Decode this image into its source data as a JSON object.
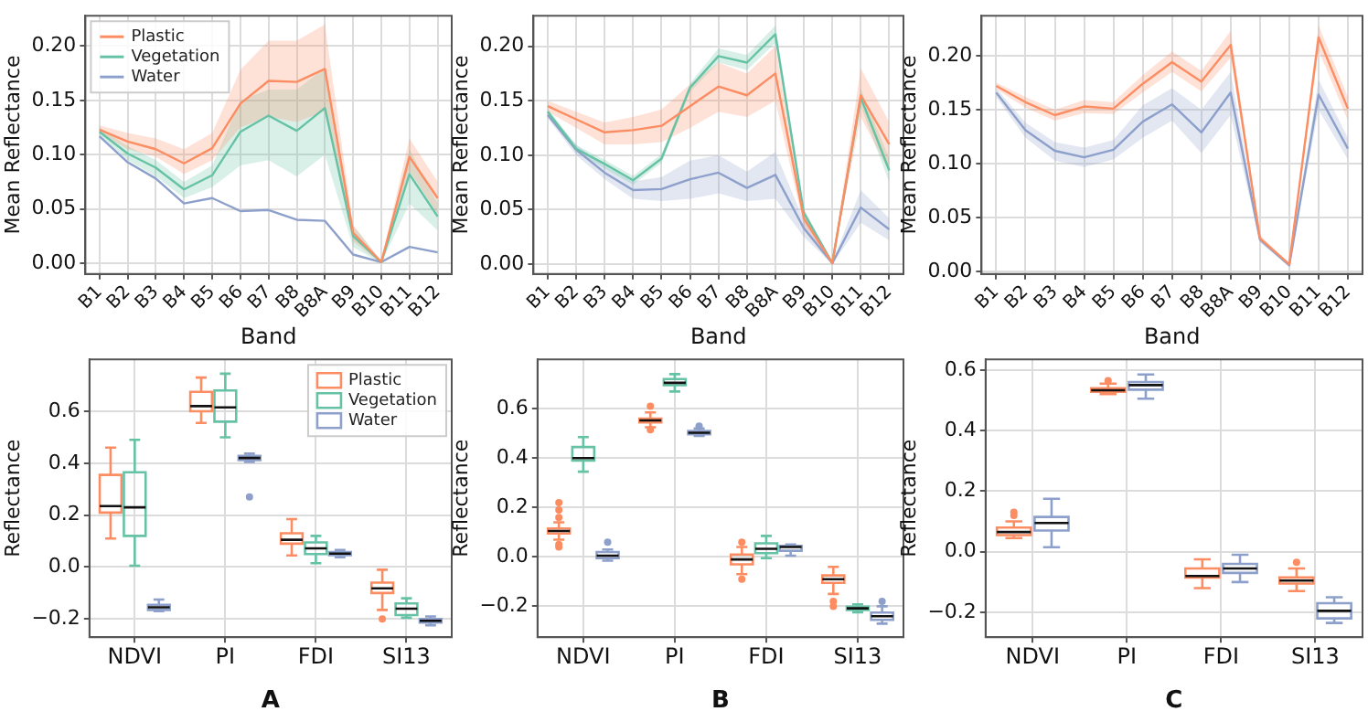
{
  "chart_data": [
    {
      "type": "line",
      "xlabel": "Band",
      "ylabel": "Mean Reflectance",
      "categories": [
        "B1",
        "B2",
        "B3",
        "B4",
        "B5",
        "B6",
        "B7",
        "B8",
        "B8A",
        "B9",
        "B10",
        "B11",
        "B12"
      ],
      "ylim": [
        -0.01,
        0.228
      ],
      "yticks": [
        {
          "value": 0,
          "label": "0.00"
        },
        {
          "value": 0.05,
          "label": "0.05"
        },
        {
          "value": 0.1,
          "label": "0.10"
        },
        {
          "value": 0.15,
          "label": "0.15"
        },
        {
          "value": 0.2,
          "label": "0.20"
        }
      ],
      "grid": true,
      "legend": "top left",
      "series": [
        {
          "name": "Plastic",
          "color": "#fc8d62",
          "values": [
            0.123,
            0.112,
            0.105,
            0.092,
            0.106,
            0.147,
            0.168,
            0.167,
            0.179,
            0.028,
            0.001,
            0.098,
            0.06
          ],
          "lower": [
            0.12,
            0.105,
            0.098,
            0.082,
            0.095,
            0.125,
            0.135,
            0.13,
            0.14,
            0.02,
            0,
            0.085,
            0.045
          ],
          "upper": [
            0.127,
            0.12,
            0.115,
            0.105,
            0.12,
            0.178,
            0.205,
            0.205,
            0.22,
            0.035,
            0.002,
            0.115,
            0.075
          ]
        },
        {
          "name": "Vegetation",
          "color": "#66c2a5",
          "values": [
            0.121,
            0.101,
            0.088,
            0.068,
            0.081,
            0.121,
            0.136,
            0.122,
            0.143,
            0.025,
            0.001,
            0.082,
            0.043
          ],
          "lower": [
            0.118,
            0.095,
            0.08,
            0.06,
            0.07,
            0.09,
            0.095,
            0.08,
            0.1,
            0.015,
            0,
            0.055,
            0.03
          ],
          "upper": [
            0.125,
            0.108,
            0.095,
            0.075,
            0.09,
            0.15,
            0.16,
            0.16,
            0.18,
            0.035,
            0.002,
            0.105,
            0.055
          ]
        },
        {
          "name": "Water",
          "color": "#8da0cb",
          "values": [
            0.117,
            0.093,
            0.078,
            0.055,
            0.06,
            0.048,
            0.049,
            0.04,
            0.039,
            0.008,
            0.001,
            0.015,
            0.01
          ]
        }
      ]
    },
    {
      "type": "line",
      "xlabel": "Band",
      "ylabel": "Mean Reflectance",
      "categories": [
        "B1",
        "B2",
        "B3",
        "B4",
        "B5",
        "B6",
        "B7",
        "B8",
        "B8A",
        "B9",
        "B10",
        "B11",
        "B12"
      ],
      "ylim": [
        -0.009,
        0.228
      ],
      "yticks": [
        {
          "value": 0,
          "label": "0.00"
        },
        {
          "value": 0.05,
          "label": "0.05"
        },
        {
          "value": 0.1,
          "label": "0.10"
        },
        {
          "value": 0.15,
          "label": "0.15"
        },
        {
          "value": 0.2,
          "label": "0.20"
        }
      ],
      "grid": true,
      "series": [
        {
          "color": "#fc8d62",
          "values": [
            0.145,
            0.133,
            0.121,
            0.123,
            0.127,
            0.145,
            0.163,
            0.155,
            0.175,
            0.042,
            0.001,
            0.155,
            0.11
          ],
          "lower": [
            0.14,
            0.125,
            0.11,
            0.11,
            0.112,
            0.125,
            0.14,
            0.135,
            0.15,
            0.035,
            0,
            0.135,
            0.085
          ],
          "upper": [
            0.15,
            0.14,
            0.13,
            0.135,
            0.142,
            0.165,
            0.185,
            0.175,
            0.2,
            0.05,
            0.002,
            0.18,
            0.13
          ]
        },
        {
          "color": "#66c2a5",
          "values": [
            0.14,
            0.106,
            0.092,
            0.077,
            0.097,
            0.162,
            0.191,
            0.185,
            0.211,
            0.047,
            0.001,
            0.153,
            0.086
          ],
          "lower": [
            0.137,
            0.103,
            0.088,
            0.073,
            0.093,
            0.158,
            0.185,
            0.178,
            0.203,
            0.043,
            0,
            0.145,
            0.075
          ],
          "upper": [
            0.143,
            0.109,
            0.096,
            0.081,
            0.101,
            0.166,
            0.198,
            0.192,
            0.219,
            0.051,
            0.002,
            0.161,
            0.097
          ]
        },
        {
          "color": "#8da0cb",
          "values": [
            0.137,
            0.105,
            0.084,
            0.068,
            0.069,
            0.078,
            0.084,
            0.07,
            0.082,
            0.033,
            0.001,
            0.052,
            0.032
          ],
          "lower": [
            0.134,
            0.1,
            0.078,
            0.06,
            0.058,
            0.06,
            0.065,
            0.058,
            0.06,
            0.025,
            0,
            0.038,
            0.022
          ],
          "upper": [
            0.14,
            0.11,
            0.09,
            0.076,
            0.08,
            0.095,
            0.1,
            0.085,
            0.103,
            0.04,
            0.002,
            0.068,
            0.042
          ]
        }
      ]
    },
    {
      "type": "line",
      "xlabel": "Band",
      "ylabel": "Mean Reflectance",
      "categories": [
        "B1",
        "B2",
        "B3",
        "B4",
        "B5",
        "B6",
        "B7",
        "B8",
        "B8A",
        "B9",
        "B10",
        "B11",
        "B12"
      ],
      "ylim": [
        -0.002,
        0.237
      ],
      "yticks": [
        {
          "value": 0,
          "label": "0.00"
        },
        {
          "value": 0.05,
          "label": "0.05"
        },
        {
          "value": 0.1,
          "label": "0.10"
        },
        {
          "value": 0.15,
          "label": "0.15"
        },
        {
          "value": 0.2,
          "label": "0.20"
        }
      ],
      "grid": true,
      "series": [
        {
          "color": "#fc8d62",
          "values": [
            0.172,
            0.157,
            0.145,
            0.153,
            0.151,
            0.174,
            0.194,
            0.176,
            0.21,
            0.031,
            0.007,
            0.217,
            0.151
          ],
          "lower": [
            0.169,
            0.152,
            0.14,
            0.147,
            0.146,
            0.166,
            0.185,
            0.167,
            0.198,
            0.029,
            0.006,
            0.205,
            0.14
          ],
          "upper": [
            0.175,
            0.162,
            0.15,
            0.159,
            0.157,
            0.182,
            0.204,
            0.186,
            0.223,
            0.034,
            0.008,
            0.228,
            0.162
          ]
        },
        {
          "color": "#8da0cb",
          "values": [
            0.166,
            0.131,
            0.112,
            0.106,
            0.113,
            0.139,
            0.155,
            0.129,
            0.166,
            0.03,
            0.006,
            0.164,
            0.114
          ],
          "lower": [
            0.162,
            0.124,
            0.103,
            0.097,
            0.104,
            0.124,
            0.14,
            0.11,
            0.145,
            0.027,
            0.005,
            0.15,
            0.104
          ],
          "upper": [
            0.17,
            0.138,
            0.12,
            0.115,
            0.122,
            0.154,
            0.17,
            0.15,
            0.185,
            0.033,
            0.007,
            0.178,
            0.124
          ]
        }
      ]
    },
    {
      "type": "box",
      "ylabel": "Reflectance",
      "categories": [
        "NDVI",
        "PI",
        "FDI",
        "SI13"
      ],
      "ylim": [
        -0.27,
        0.8
      ],
      "yticks": [
        {
          "value": -0.2,
          "label": "−0.2"
        },
        {
          "value": 0,
          "label": "0.0"
        },
        {
          "value": 0.2,
          "label": "0.2"
        },
        {
          "value": 0.4,
          "label": "0.4"
        },
        {
          "value": 0.6,
          "label": "0.6"
        }
      ],
      "grid": true,
      "legend": "top right",
      "annotations": [
        "A"
      ],
      "series": [
        {
          "name": "Plastic",
          "color": "#fc8d62",
          "boxes": [
            {
              "low": 0.11,
              "q1": 0.21,
              "median": 0.235,
              "q3": 0.355,
              "high": 0.46
            },
            {
              "low": 0.555,
              "q1": 0.6,
              "median": 0.62,
              "q3": 0.675,
              "high": 0.73
            },
            {
              "low": 0.045,
              "q1": 0.09,
              "median": 0.105,
              "q3": 0.13,
              "high": 0.185
            },
            {
              "low": -0.165,
              "q1": -0.1,
              "median": -0.082,
              "q3": -0.06,
              "high": -0.01,
              "outliers": [
                -0.2
              ]
            }
          ]
        },
        {
          "name": "Vegetation",
          "color": "#66c2a5",
          "boxes": [
            {
              "low": 0.005,
              "q1": 0.12,
              "median": 0.23,
              "q3": 0.365,
              "high": 0.49
            },
            {
              "low": 0.5,
              "q1": 0.56,
              "median": 0.615,
              "q3": 0.68,
              "high": 0.745
            },
            {
              "low": 0.015,
              "q1": 0.05,
              "median": 0.072,
              "q3": 0.095,
              "high": 0.12
            },
            {
              "low": -0.195,
              "q1": -0.185,
              "median": -0.16,
              "q3": -0.14,
              "high": -0.12
            }
          ]
        },
        {
          "name": "Water",
          "color": "#8da0cb",
          "boxes": [
            {
              "low": -0.17,
              "q1": -0.165,
              "median": -0.155,
              "q3": -0.145,
              "high": -0.125
            },
            {
              "low": 0.405,
              "q1": 0.412,
              "median": 0.42,
              "q3": 0.428,
              "high": 0.437,
              "outliers": [
                0.27
              ]
            },
            {
              "low": 0.038,
              "q1": 0.046,
              "median": 0.052,
              "q3": 0.058,
              "high": 0.066
            },
            {
              "low": -0.224,
              "q1": -0.214,
              "median": -0.207,
              "q3": -0.2,
              "high": -0.19
            }
          ]
        }
      ]
    },
    {
      "type": "box",
      "ylabel": "Reflectance",
      "categories": [
        "NDVI",
        "PI",
        "FDI",
        "SI13"
      ],
      "ylim": [
        -0.325,
        0.8
      ],
      "yticks": [
        {
          "value": -0.2,
          "label": "−0.2"
        },
        {
          "value": 0,
          "label": "0.0"
        },
        {
          "value": 0.2,
          "label": "0.2"
        },
        {
          "value": 0.4,
          "label": "0.4"
        },
        {
          "value": 0.6,
          "label": "0.6"
        }
      ],
      "grid": true,
      "annotations": [
        "B"
      ],
      "series": [
        {
          "color": "#fc8d62",
          "boxes": [
            {
              "low": 0.07,
              "q1": 0.095,
              "median": 0.105,
              "q3": 0.115,
              "high": 0.14,
              "outliers": [
                0.16,
                0.19,
                0.22,
                0.05,
                0.04
              ]
            },
            {
              "low": 0.525,
              "q1": 0.545,
              "median": 0.553,
              "q3": 0.56,
              "high": 0.585,
              "outliers": [
                0.61,
                0.515
              ]
            },
            {
              "low": -0.07,
              "q1": -0.03,
              "median": -0.01,
              "q3": 0.01,
              "high": 0.04,
              "outliers": [
                -0.09,
                0.06
              ]
            },
            {
              "low": -0.15,
              "q1": -0.105,
              "median": -0.09,
              "q3": -0.075,
              "high": -0.04,
              "outliers": [
                -0.2,
                -0.18
              ]
            }
          ]
        },
        {
          "color": "#66c2a5",
          "boxes": [
            {
              "low": 0.345,
              "q1": 0.39,
              "median": 0.4,
              "q3": 0.445,
              "high": 0.485
            },
            {
              "low": 0.67,
              "q1": 0.695,
              "median": 0.705,
              "q3": 0.72,
              "high": 0.74
            },
            {
              "low": -0.005,
              "q1": 0.015,
              "median": 0.033,
              "q3": 0.055,
              "high": 0.085
            },
            {
              "low": -0.224,
              "q1": -0.215,
              "median": -0.208,
              "q3": -0.201,
              "high": -0.192
            }
          ]
        },
        {
          "color": "#8da0cb",
          "boxes": [
            {
              "low": -0.015,
              "q1": -0.005,
              "median": 0.005,
              "q3": 0.02,
              "high": 0.03,
              "outliers": [
                0.06
              ]
            },
            {
              "low": 0.49,
              "q1": 0.497,
              "median": 0.503,
              "q3": 0.51,
              "high": 0.52,
              "outliers": [
                0.53
              ]
            },
            {
              "low": 0.005,
              "q1": 0.025,
              "median": 0.04,
              "q3": 0.045,
              "high": 0.05
            },
            {
              "low": -0.27,
              "q1": -0.255,
              "median": -0.24,
              "q3": -0.225,
              "high": -0.2,
              "outliers": [
                -0.18
              ]
            }
          ]
        }
      ]
    },
    {
      "type": "box",
      "ylabel": "Reflectance",
      "categories": [
        "NDVI",
        "PI",
        "FDI",
        "SI13"
      ],
      "ylim": [
        -0.282,
        0.635
      ],
      "yticks": [
        {
          "value": -0.2,
          "label": "−0.2"
        },
        {
          "value": 0,
          "label": "0.0"
        },
        {
          "value": 0.2,
          "label": "0.2"
        },
        {
          "value": 0.4,
          "label": "0.4"
        },
        {
          "value": 0.6,
          "label": "0.6"
        }
      ],
      "grid": true,
      "annotations": [
        "C"
      ],
      "series": [
        {
          "color": "#fc8d62",
          "boxes": [
            {
              "low": 0.045,
              "q1": 0.055,
              "median": 0.065,
              "q3": 0.08,
              "high": 0.1,
              "outliers": [
                0.12,
                0.13
              ]
            },
            {
              "low": 0.52,
              "q1": 0.528,
              "median": 0.533,
              "q3": 0.54,
              "high": 0.555,
              "outliers": [
                0.565
              ]
            },
            {
              "low": -0.12,
              "q1": -0.085,
              "median": -0.08,
              "q3": -0.055,
              "high": -0.025
            },
            {
              "low": -0.13,
              "q1": -0.105,
              "median": -0.095,
              "q3": -0.085,
              "high": -0.055,
              "outliers": [
                -0.035
              ]
            }
          ]
        },
        {
          "color": "#8da0cb",
          "boxes": [
            {
              "low": 0.015,
              "q1": 0.07,
              "median": 0.095,
              "q3": 0.115,
              "high": 0.175
            },
            {
              "low": 0.505,
              "q1": 0.535,
              "median": 0.55,
              "q3": 0.56,
              "high": 0.585
            },
            {
              "low": -0.1,
              "q1": -0.07,
              "median": -0.055,
              "q3": -0.04,
              "high": -0.01
            },
            {
              "low": -0.235,
              "q1": -0.22,
              "median": -0.195,
              "q3": -0.17,
              "high": -0.15
            }
          ]
        }
      ]
    }
  ]
}
